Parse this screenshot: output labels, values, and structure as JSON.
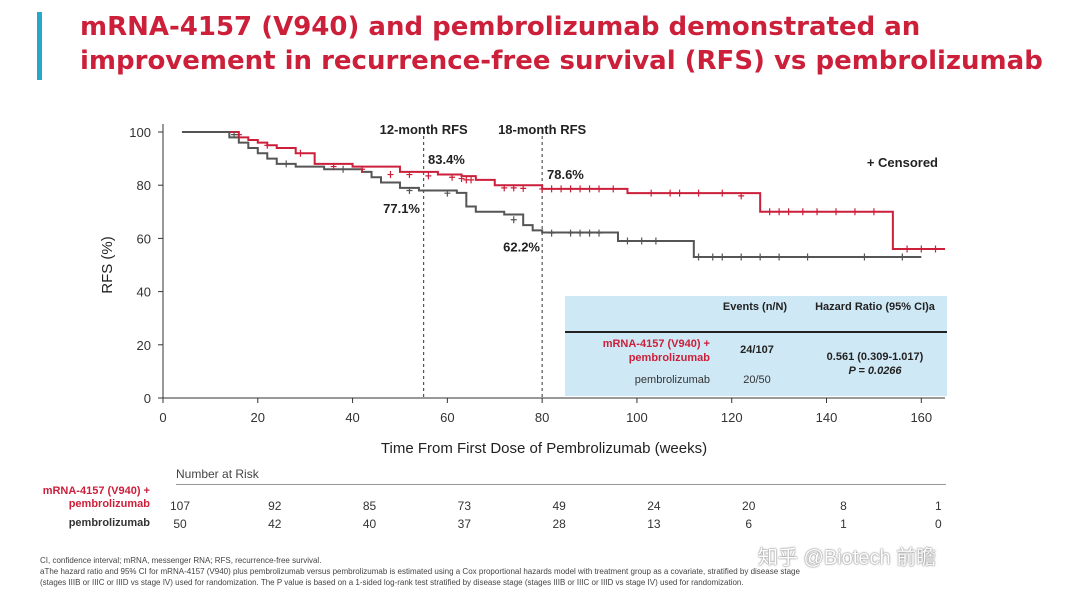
{
  "title": "mRNA-4157 (V940) and pembrolizumab demonstrated an improvement in recurrence-free survival (RFS) vs pembrolizumab",
  "colors": {
    "combo": "#cc1f3a",
    "mono": "#555555",
    "accent": "#27a8c9",
    "table_bg": "#cfe8f5"
  },
  "chart_data": {
    "type": "line",
    "xlabel": "Time From First Dose of Pembrolizumab (weeks)",
    "ylabel": "RFS (%)",
    "xlim": [
      0,
      165
    ],
    "ylim": [
      0,
      100
    ],
    "xticks": [
      0,
      20,
      40,
      60,
      80,
      100,
      120,
      140,
      160
    ],
    "yticks": [
      0,
      20,
      40,
      60,
      80,
      100
    ],
    "legend_note": "+ Censored",
    "reference_lines": [
      {
        "x": 55,
        "label": "12-month RFS"
      },
      {
        "x": 80,
        "label": "18-month RFS"
      }
    ],
    "annotations": [
      {
        "text": "83.4%",
        "series": "combo"
      },
      {
        "text": "77.1%",
        "series": "mono"
      },
      {
        "text": "78.6%",
        "series": "combo"
      },
      {
        "text": "62.2%",
        "series": "mono"
      }
    ],
    "series": [
      {
        "key": "combo",
        "color": "#cc1f3a",
        "steps": [
          [
            4,
            100
          ],
          [
            16,
            100
          ],
          [
            16,
            98
          ],
          [
            18,
            97
          ],
          [
            20,
            96
          ],
          [
            22,
            95
          ],
          [
            24,
            94
          ],
          [
            28,
            92
          ],
          [
            32,
            88
          ],
          [
            40,
            87
          ],
          [
            50,
            85
          ],
          [
            58,
            84
          ],
          [
            63,
            83.4
          ],
          [
            66,
            82
          ],
          [
            70,
            80
          ],
          [
            80,
            78.6
          ],
          [
            96,
            78.6
          ],
          [
            98,
            77
          ],
          [
            126,
            75
          ],
          [
            126,
            70
          ],
          [
            152,
            70
          ],
          [
            154,
            56
          ],
          [
            165,
            56
          ]
        ],
        "censors": [
          [
            16,
            99
          ],
          [
            22,
            95
          ],
          [
            29,
            92
          ],
          [
            36,
            87
          ],
          [
            42,
            86
          ],
          [
            48,
            84
          ],
          [
            52,
            84
          ],
          [
            56,
            83.5
          ],
          [
            61,
            83
          ],
          [
            63,
            82.5
          ],
          [
            64,
            82
          ],
          [
            65,
            82
          ],
          [
            72,
            79
          ],
          [
            74,
            79
          ],
          [
            76,
            78.8
          ],
          [
            80,
            78.6
          ],
          [
            82,
            78.6
          ],
          [
            84,
            78.6
          ],
          [
            86,
            78.6
          ],
          [
            88,
            78.6
          ],
          [
            90,
            78.6
          ],
          [
            92,
            78.6
          ],
          [
            95,
            78.6
          ],
          [
            103,
            77
          ],
          [
            107,
            77
          ],
          [
            109,
            77
          ],
          [
            113,
            77
          ],
          [
            118,
            77
          ],
          [
            122,
            76
          ],
          [
            128,
            70
          ],
          [
            130,
            70
          ],
          [
            132,
            70
          ],
          [
            135,
            70
          ],
          [
            138,
            70
          ],
          [
            142,
            70
          ],
          [
            146,
            70
          ],
          [
            150,
            70
          ],
          [
            157,
            56
          ],
          [
            160,
            56
          ],
          [
            163,
            56
          ]
        ]
      },
      {
        "key": "mono",
        "color": "#555555",
        "steps": [
          [
            4,
            100
          ],
          [
            14,
            100
          ],
          [
            14,
            98
          ],
          [
            16,
            96
          ],
          [
            18,
            94
          ],
          [
            20,
            92
          ],
          [
            22,
            90
          ],
          [
            24,
            88
          ],
          [
            28,
            87
          ],
          [
            34,
            86
          ],
          [
            42,
            85
          ],
          [
            44,
            83
          ],
          [
            46,
            81
          ],
          [
            50,
            79
          ],
          [
            54,
            78
          ],
          [
            62,
            77.1
          ],
          [
            64,
            72
          ],
          [
            66,
            70
          ],
          [
            72,
            69
          ],
          [
            76,
            65
          ],
          [
            78,
            63
          ],
          [
            80,
            62.2
          ],
          [
            94,
            62.2
          ],
          [
            96,
            59
          ],
          [
            110,
            59
          ],
          [
            112,
            53
          ],
          [
            160,
            53
          ]
        ],
        "censors": [
          [
            15,
            99
          ],
          [
            26,
            88
          ],
          [
            38,
            86
          ],
          [
            52,
            78
          ],
          [
            60,
            77
          ],
          [
            74,
            67
          ],
          [
            82,
            62
          ],
          [
            86,
            62
          ],
          [
            88,
            62
          ],
          [
            90,
            62
          ],
          [
            92,
            62
          ],
          [
            98,
            59
          ],
          [
            101,
            59
          ],
          [
            104,
            59
          ],
          [
            113,
            53
          ],
          [
            116,
            53
          ],
          [
            118,
            53
          ],
          [
            122,
            53
          ],
          [
            126,
            53
          ],
          [
            130,
            53
          ],
          [
            136,
            53
          ],
          [
            148,
            53
          ],
          [
            156,
            53
          ]
        ]
      }
    ]
  },
  "table": {
    "events_header": "Events (n/N)",
    "hr_header": "Hazard Ratio (95% CI)a",
    "row1_label": "mRNA-4157 (V940) + pembrolizumab",
    "row1_events": "24/107",
    "row2_label": "pembrolizumab",
    "row2_events": "20/50",
    "hr_value": "0.561 (0.309-1.017)",
    "p_value": "P = 0.0266"
  },
  "risk": {
    "header": "Number at Risk",
    "combo_label": "mRNA-4157 (V940) + pembrolizumab",
    "mono_label": "pembrolizumab",
    "combo": [
      "107",
      "92",
      "85",
      "73",
      "49",
      "24",
      "20",
      "8",
      "1"
    ],
    "mono": [
      "50",
      "42",
      "40",
      "37",
      "28",
      "13",
      "6",
      "1",
      "0"
    ]
  },
  "footnotes": {
    "line1": "CI, confidence interval; mRNA, messenger RNA; RFS, recurrence-free survival.",
    "line2": "aThe hazard ratio and 95% CI for mRNA-4157 (V940) plus pembrolizumab versus pembrolizumab is estimated using a Cox proportional hazards model with treatment group as a covariate, stratified by disease stage",
    "line3": "(stages IIIB or IIIC or IIID vs stage IV) used for randomization. The P value is based on a 1-sided log-rank test stratified by disease stage (stages IIIB or IIIC or IIID vs stage IV) used for randomization."
  },
  "watermark": "知乎 @Biotech 前瞻"
}
